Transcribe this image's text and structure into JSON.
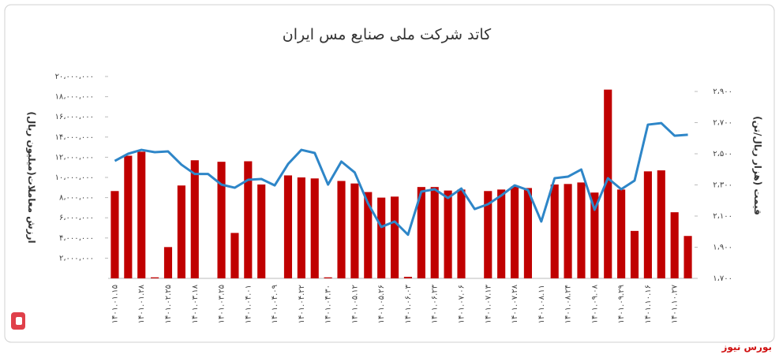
{
  "chart_data": {
    "type": "bar-line",
    "title": "کاتد شرکت ملی صنایع مس ایران",
    "y_label": "ارزش معاملات(میلیون ریال)",
    "y2_label": "قیمت (هزار ریال/تن)",
    "categories": [
      "۱۴۰۱.۰۱.۱۵",
      null,
      "۱۴۰۱.۰۱.۲۸",
      null,
      "۱۴۰۱.۰۲.۲۵",
      null,
      "۱۴۰۱.۰۳.۱۸",
      null,
      "۱۴۰۱.۰۳.۲۵",
      null,
      "۱۴۰۱.۰۴.۰۱",
      null,
      "۱۴۰۱.۰۴.۰۹",
      null,
      "۱۴۰۱.۰۴.۲۲",
      null,
      "۱۴۰۱.۰۴.۳۰",
      null,
      "۱۴۰۱.۰۵.۱۲",
      null,
      "۱۴۰۱.۰۵.۲۶",
      null,
      "۱۴۰۱.۰۶.۰۳",
      null,
      "۱۴۰۱.۰۶.۲۳",
      null,
      "۱۴۰۱.۰۷.۰۶",
      null,
      "۱۴۰۱.۰۷.۱۳",
      null,
      "۱۴۰۱.۰۷.۲۸",
      null,
      "۱۴۰۱.۰۸.۱۱",
      null,
      "۱۴۰۱.۰۸.۲۴",
      null,
      "۱۴۰۱.۰۹.۰۸",
      null,
      "۱۴۰۱.۰۹.۲۹",
      null,
      "۱۴۰۱.۱۰.۱۶",
      null,
      "۱۴۰۱.۱۰.۲۷",
      null
    ],
    "series": [
      {
        "type": "bar",
        "color": "#c00000",
        "values": [
          8650000,
          12150000,
          12550000,
          100000,
          3100000,
          9200000,
          11700000,
          0,
          11550000,
          4500000,
          11600000,
          9300000,
          0,
          10200000,
          10000000,
          9900000,
          100000,
          9650000,
          9400000,
          8550000,
          8000000,
          8100000,
          150000,
          9050000,
          9050000,
          8700000,
          8800000,
          0,
          8650000,
          8800000,
          9100000,
          8950000,
          0,
          9300000,
          9350000,
          9500000,
          8500000,
          18700000,
          8800000,
          4700000,
          10600000,
          10700000,
          6550000,
          4200000
        ]
      },
      {
        "type": "line",
        "axis": "y2",
        "color": "#2e86c8",
        "values": [
          2454,
          2500,
          2525,
          2510,
          2515,
          2430,
          2370,
          2370,
          2302,
          2282,
          2333,
          2338,
          2297,
          2434,
          2525,
          2505,
          2302,
          2450,
          2380,
          2181,
          2030,
          2065,
          1980,
          2257,
          2272,
          2216,
          2277,
          2145,
          2176,
          2232,
          2297,
          2267,
          2065,
          2343,
          2353,
          2399,
          2140,
          2343,
          2272,
          2328,
          2687,
          2697,
          2616,
          2622
        ]
      }
    ],
    "ylim": [
      0,
      20000000
    ],
    "yticks": [
      {
        "value": 2000000,
        "label": "۲،۰۰۰،۰۰۰"
      },
      {
        "value": 4000000,
        "label": "۴،۰۰۰،۰۰۰"
      },
      {
        "value": 6000000,
        "label": "۶،۰۰۰،۰۰۰"
      },
      {
        "value": 8000000,
        "label": "۸،۰۰۰،۰۰۰"
      },
      {
        "value": 10000000,
        "label": "۱۰،۰۰۰،۰۰۰"
      },
      {
        "value": 12000000,
        "label": "۱۲،۰۰۰،۰۰۰"
      },
      {
        "value": 14000000,
        "label": "۱۴،۰۰۰،۰۰۰"
      },
      {
        "value": 16000000,
        "label": "۱۶،۰۰۰،۰۰۰"
      },
      {
        "value": 18000000,
        "label": "۱۸،۰۰۰،۰۰۰"
      },
      {
        "value": 20000000,
        "label": "۲۰،۰۰۰،۰۰۰"
      }
    ],
    "y2lim": [
      1700,
      2900
    ],
    "y2ticks": [
      {
        "value": 1700,
        "label": "۱،۷۰۰"
      },
      {
        "value": 1900,
        "label": "۱،۹۰۰"
      },
      {
        "value": 2100,
        "label": "۲،۱۰۰"
      },
      {
        "value": 2300,
        "label": "۲،۳۰۰"
      },
      {
        "value": 2500,
        "label": "۲،۵۰۰"
      },
      {
        "value": 2700,
        "label": "۲،۷۰۰"
      },
      {
        "value": 2900,
        "label": "۲،۹۰۰"
      }
    ],
    "watermark": "بورس نیوز"
  }
}
